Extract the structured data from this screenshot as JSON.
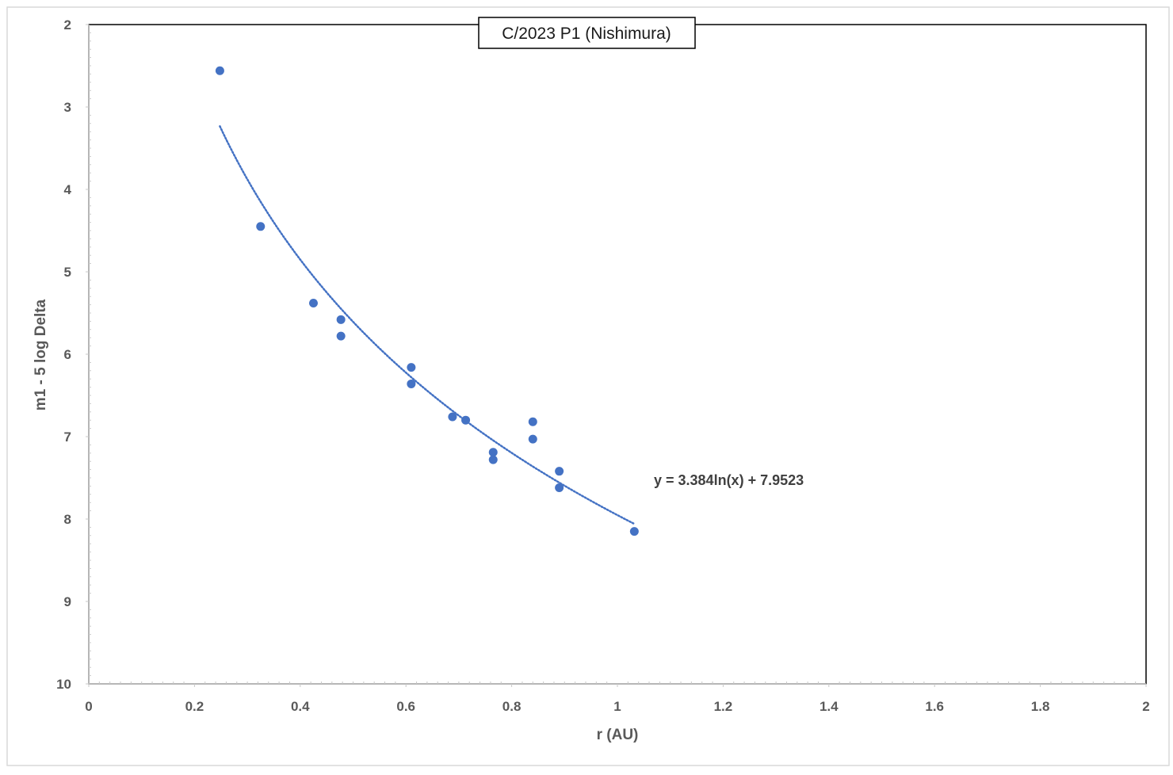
{
  "chart_data": {
    "type": "scatter",
    "title": "C/2023 P1 (Nishimura)",
    "xlabel": "r (AU)",
    "ylabel": "m1 - 5 log Delta",
    "xlim": [
      0,
      2
    ],
    "ylim": [
      2,
      10
    ],
    "y_axis_inverted": true,
    "x_ticks": [
      "0",
      "0.2",
      "0.4",
      "0.6",
      "0.8",
      "1",
      "1.2",
      "1.4",
      "1.6",
      "1.8",
      "2"
    ],
    "y_ticks": [
      "2",
      "3",
      "4",
      "5",
      "6",
      "7",
      "8",
      "9",
      "10"
    ],
    "grid": false,
    "legend": "none",
    "series": [
      {
        "marker_color": "#4472c4",
        "x": [
          0.248,
          0.325,
          0.425,
          0.477,
          0.477,
          0.61,
          0.61,
          0.688,
          0.713,
          0.765,
          0.765,
          0.84,
          0.84,
          0.89,
          0.89,
          1.032
        ],
        "y": [
          2.56,
          4.45,
          5.38,
          5.58,
          5.78,
          6.16,
          6.36,
          6.76,
          6.8,
          7.19,
          7.28,
          6.82,
          7.03,
          7.42,
          7.62,
          8.15
        ]
      }
    ],
    "trendline": {
      "type": "logarithmic",
      "equation": "y = 3.384ln(x) + 7.9523",
      "a": 3.384,
      "b": 7.9523,
      "x_range": [
        0.248,
        1.032
      ],
      "color": "#4472c4",
      "style": "dotted"
    }
  }
}
